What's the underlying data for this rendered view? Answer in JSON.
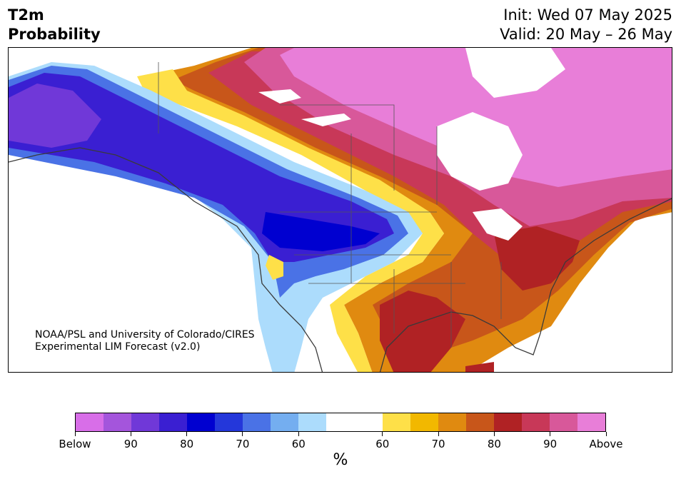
{
  "header": {
    "title_line1": "T2m",
    "title_line2": "Probability",
    "init": "Init: Wed 07 May 2025",
    "valid": "Valid: 20 May – 26 May"
  },
  "credit": {
    "line1": "NOAA/PSL and University of Colorado/CIRES",
    "line2": "Experimental LIM Forecast (v2.0)"
  },
  "colorbar": {
    "colors": [
      "#d86ee8",
      "#a455dc",
      "#7038d8",
      "#3a1fd2",
      "#0000d0",
      "#2437da",
      "#4a72e6",
      "#74aef0",
      "#acdcfc",
      "#ffffff",
      "#ffffff",
      "#fee048",
      "#f2b800",
      "#e08a10",
      "#c8561a",
      "#b02224",
      "#c83858",
      "#d8589a",
      "#e87ed8"
    ],
    "tick_labels": [
      "Below",
      "90",
      "80",
      "70",
      "60",
      "60",
      "70",
      "80",
      "90",
      "Above"
    ],
    "unit": "%"
  }
}
